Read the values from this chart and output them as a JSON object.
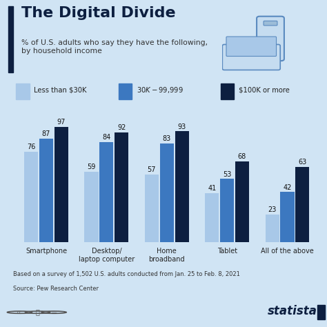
{
  "title": "The Digital Divide",
  "subtitle": "% of U.S. adults who say they have the following,\nby household income",
  "categories": [
    "Smartphone",
    "Desktop/\nlaptop computer",
    "Home\nbroadband",
    "Tablet",
    "All of the above"
  ],
  "series": [
    {
      "label": "Less than $30K",
      "color": "#a8c8e8",
      "values": [
        76,
        59,
        57,
        41,
        23
      ]
    },
    {
      "label": "$30K - $99,999",
      "color": "#3c78c0",
      "values": [
        87,
        84,
        83,
        53,
        42
      ]
    },
    {
      "label": "$100K or more",
      "color": "#0d1f40",
      "values": [
        97,
        92,
        93,
        68,
        63
      ]
    }
  ],
  "footnote1": "Based on a survey of 1,502 U.S. adults conducted from Jan. 25 to Feb. 8, 2021",
  "footnote2": "Source: Pew Research Center",
  "background_color": "#d0e4f4",
  "accent_color": "#0d1f40",
  "ylim": [
    0,
    110
  ],
  "bar_width": 0.25
}
